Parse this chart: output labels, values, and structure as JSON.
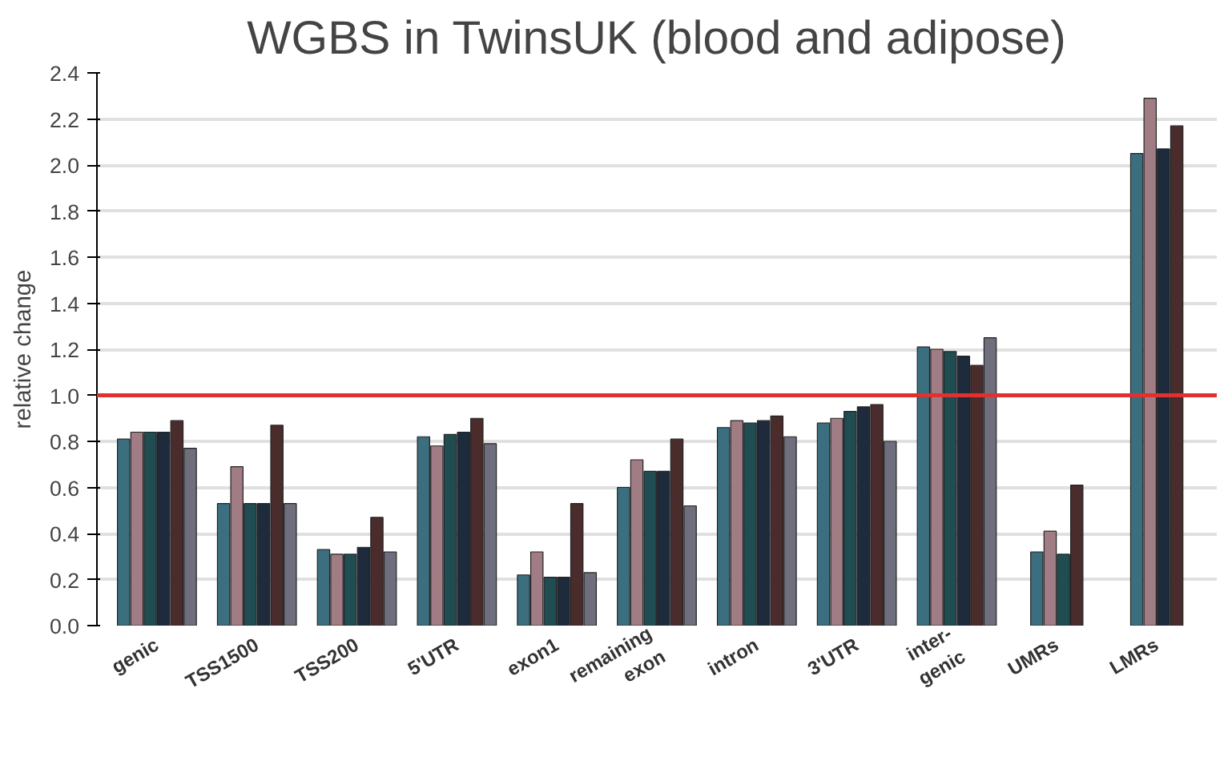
{
  "chart_data": {
    "type": "bar",
    "title": "WGBS in TwinsUK (blood and adipose)",
    "ylabel": "relative change",
    "categories": [
      "genic",
      "TSS1500",
      "TSS200",
      "5'UTR",
      "exon1",
      "remaining\nexon",
      "intron",
      "3'UTR",
      "inter-\ngenic",
      "UMRs",
      "LMRs"
    ],
    "series": [
      {
        "color": "#3b6f80",
        "values": [
          0.81,
          0.53,
          0.33,
          0.82,
          0.22,
          0.6,
          0.86,
          0.88,
          1.21,
          0.32,
          2.05
        ]
      },
      {
        "color": "#a07c84",
        "values": [
          0.84,
          0.69,
          0.31,
          0.78,
          0.32,
          0.72,
          0.89,
          0.9,
          1.2,
          0.41,
          2.29
        ]
      },
      {
        "color": "#1f4d52",
        "values": [
          0.84,
          0.53,
          0.31,
          0.83,
          0.21,
          0.67,
          0.88,
          0.93,
          1.19,
          0.31,
          null
        ]
      },
      {
        "color": "#1e2b3c",
        "values": [
          0.84,
          0.53,
          0.34,
          0.84,
          0.21,
          0.67,
          0.89,
          0.95,
          1.17,
          null,
          2.07
        ]
      },
      {
        "color": "#4a2c2c",
        "values": [
          0.89,
          0.87,
          0.47,
          0.9,
          0.53,
          0.81,
          0.91,
          0.96,
          1.13,
          0.61,
          2.17
        ]
      },
      {
        "color": "#6e6e7c",
        "values": [
          0.77,
          0.53,
          0.32,
          0.79,
          0.23,
          0.52,
          0.82,
          0.8,
          1.25,
          null,
          null
        ]
      }
    ],
    "ylim": [
      0,
      2.4
    ],
    "yticks": [
      {
        "value": 0,
        "label": "0.0"
      },
      0.2,
      0.4,
      0.6,
      0.8,
      {
        "value": 1,
        "label": "1.0"
      },
      1.2,
      1.4,
      1.6,
      1.8,
      {
        "value": 2,
        "label": "2.0"
      },
      2.2,
      2.4
    ],
    "grid": "y",
    "ref_lines": [
      {
        "axis": "y",
        "value": 1,
        "color": "#e03030"
      }
    ]
  }
}
